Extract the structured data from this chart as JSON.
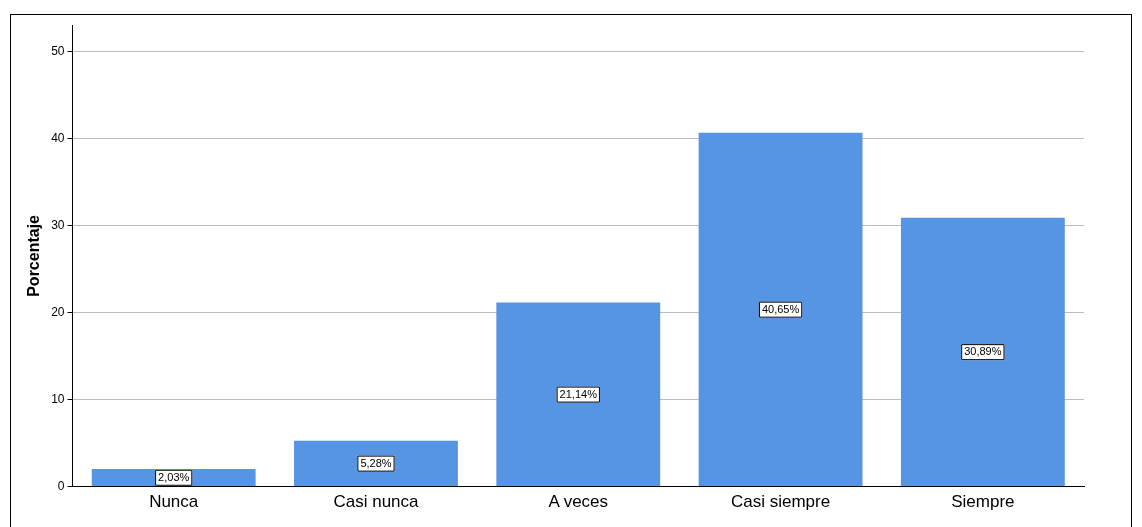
{
  "chart_data": {
    "type": "bar",
    "ylabel": "Porcentaje",
    "categories": [
      "Nunca",
      "Casi nunca",
      "A veces",
      "Casi siempre",
      "Siempre"
    ],
    "values": [
      2.03,
      5.28,
      21.14,
      40.65,
      30.89
    ],
    "value_labels": [
      "2,03%",
      "5,28%",
      "21,14%",
      "40,65%",
      "30,89%"
    ],
    "color": "#5694e4",
    "ylim": [
      0,
      53
    ],
    "yticks": [
      0,
      10,
      20,
      30,
      40,
      50
    ],
    "grid": "y"
  }
}
